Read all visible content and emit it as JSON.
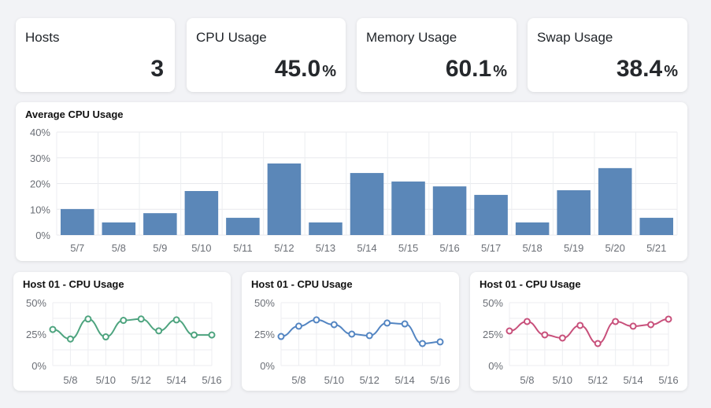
{
  "stats": [
    {
      "label": "Hosts",
      "value": "3",
      "unit": ""
    },
    {
      "label": "CPU Usage",
      "value": "45.0",
      "unit": "%"
    },
    {
      "label": "Memory Usage",
      "value": "60.1",
      "unit": "%"
    },
    {
      "label": "Swap Usage",
      "value": "38.4",
      "unit": "%"
    }
  ],
  "chart_data": [
    {
      "type": "bar",
      "title": "Average CPU Usage",
      "categories": [
        "5/7",
        "5/8",
        "5/9",
        "5/10",
        "5/11",
        "5/12",
        "5/13",
        "5/14",
        "5/15",
        "5/16",
        "5/17",
        "5/18",
        "5/19",
        "5/20",
        "5/21"
      ],
      "values": [
        10.1,
        4.9,
        8.5,
        17.1,
        6.7,
        27.8,
        4.9,
        24.1,
        20.8,
        18.9,
        15.6,
        4.9,
        17.4,
        26.0,
        6.7
      ],
      "ylim": [
        0,
        40
      ],
      "yticks": [
        "0%",
        "10%",
        "20%",
        "30%",
        "40%"
      ],
      "grid": true,
      "color": "#5b87b8"
    },
    {
      "type": "line",
      "title": "Host 01 - CPU Usage",
      "x": [
        "5/7",
        "5/8",
        "5/9",
        "5/10",
        "5/11",
        "5/12",
        "5/13",
        "5/14",
        "5/15",
        "5/16"
      ],
      "xticks": [
        "5/8",
        "5/10",
        "5/12",
        "5/14",
        "5/16"
      ],
      "values": [
        28.7,
        21.1,
        37.0,
        22.8,
        35.9,
        37.0,
        27.6,
        36.3,
        24.3,
        24.3
      ],
      "ylim": [
        0,
        50
      ],
      "yticks": [
        "0%",
        "25%",
        "50%"
      ],
      "grid": true,
      "color": "#4ea47f"
    },
    {
      "type": "line",
      "title": "Host 01 - CPU Usage",
      "x": [
        "5/7",
        "5/8",
        "5/9",
        "5/10",
        "5/11",
        "5/12",
        "5/13",
        "5/14",
        "5/15",
        "5/16"
      ],
      "xticks": [
        "5/8",
        "5/10",
        "5/12",
        "5/14",
        "5/16"
      ],
      "values": [
        23.1,
        31.3,
        36.3,
        32.5,
        25.0,
        23.8,
        33.8,
        33.1,
        17.5,
        18.8
      ],
      "ylim": [
        0,
        50
      ],
      "yticks": [
        "0%",
        "25%",
        "50%"
      ],
      "grid": true,
      "color": "#5385c2"
    },
    {
      "type": "line",
      "title": "Host 01 - CPU Usage",
      "x": [
        "5/7",
        "5/8",
        "5/9",
        "5/10",
        "5/11",
        "5/12",
        "5/13",
        "5/14",
        "5/15",
        "5/16"
      ],
      "xticks": [
        "5/8",
        "5/10",
        "5/12",
        "5/14",
        "5/16"
      ],
      "values": [
        27.5,
        35.0,
        24.4,
        21.9,
        31.9,
        17.5,
        35.0,
        31.3,
        32.5,
        36.9
      ],
      "ylim": [
        0,
        50
      ],
      "yticks": [
        "0%",
        "25%",
        "50%"
      ],
      "grid": true,
      "color": "#c8507b"
    }
  ]
}
